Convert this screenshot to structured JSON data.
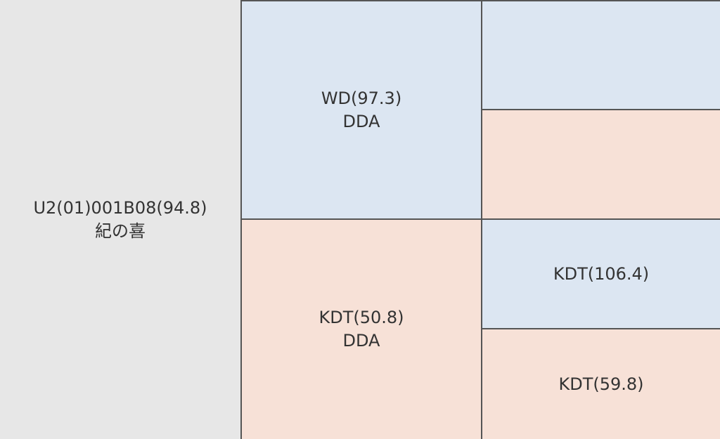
{
  "chart_data": {
    "type": "treemap",
    "colors": {
      "gray": "#e7e7e7",
      "blue": "#dce6f2",
      "peach": "#f7e1d7",
      "border": "#555555",
      "text": "#333333"
    },
    "cells": [
      {
        "id": "c0",
        "label": "U2(01)001B08(94.8)",
        "sublabel": "紀の喜",
        "color": "gray"
      },
      {
        "id": "c1",
        "label": "WD(97.3)",
        "sublabel": "DDA",
        "color": "blue"
      },
      {
        "id": "c2",
        "label": "",
        "sublabel": "",
        "color": "blue"
      },
      {
        "id": "c3",
        "label": "",
        "sublabel": "",
        "color": "peach"
      },
      {
        "id": "c4",
        "label": "KDT(50.8)",
        "sublabel": "DDA",
        "color": "peach"
      },
      {
        "id": "c5",
        "label": "KDT(106.4)",
        "sublabel": "",
        "color": "blue"
      },
      {
        "id": "c6",
        "label": "KDT(59.8)",
        "sublabel": "",
        "color": "peach"
      }
    ]
  }
}
